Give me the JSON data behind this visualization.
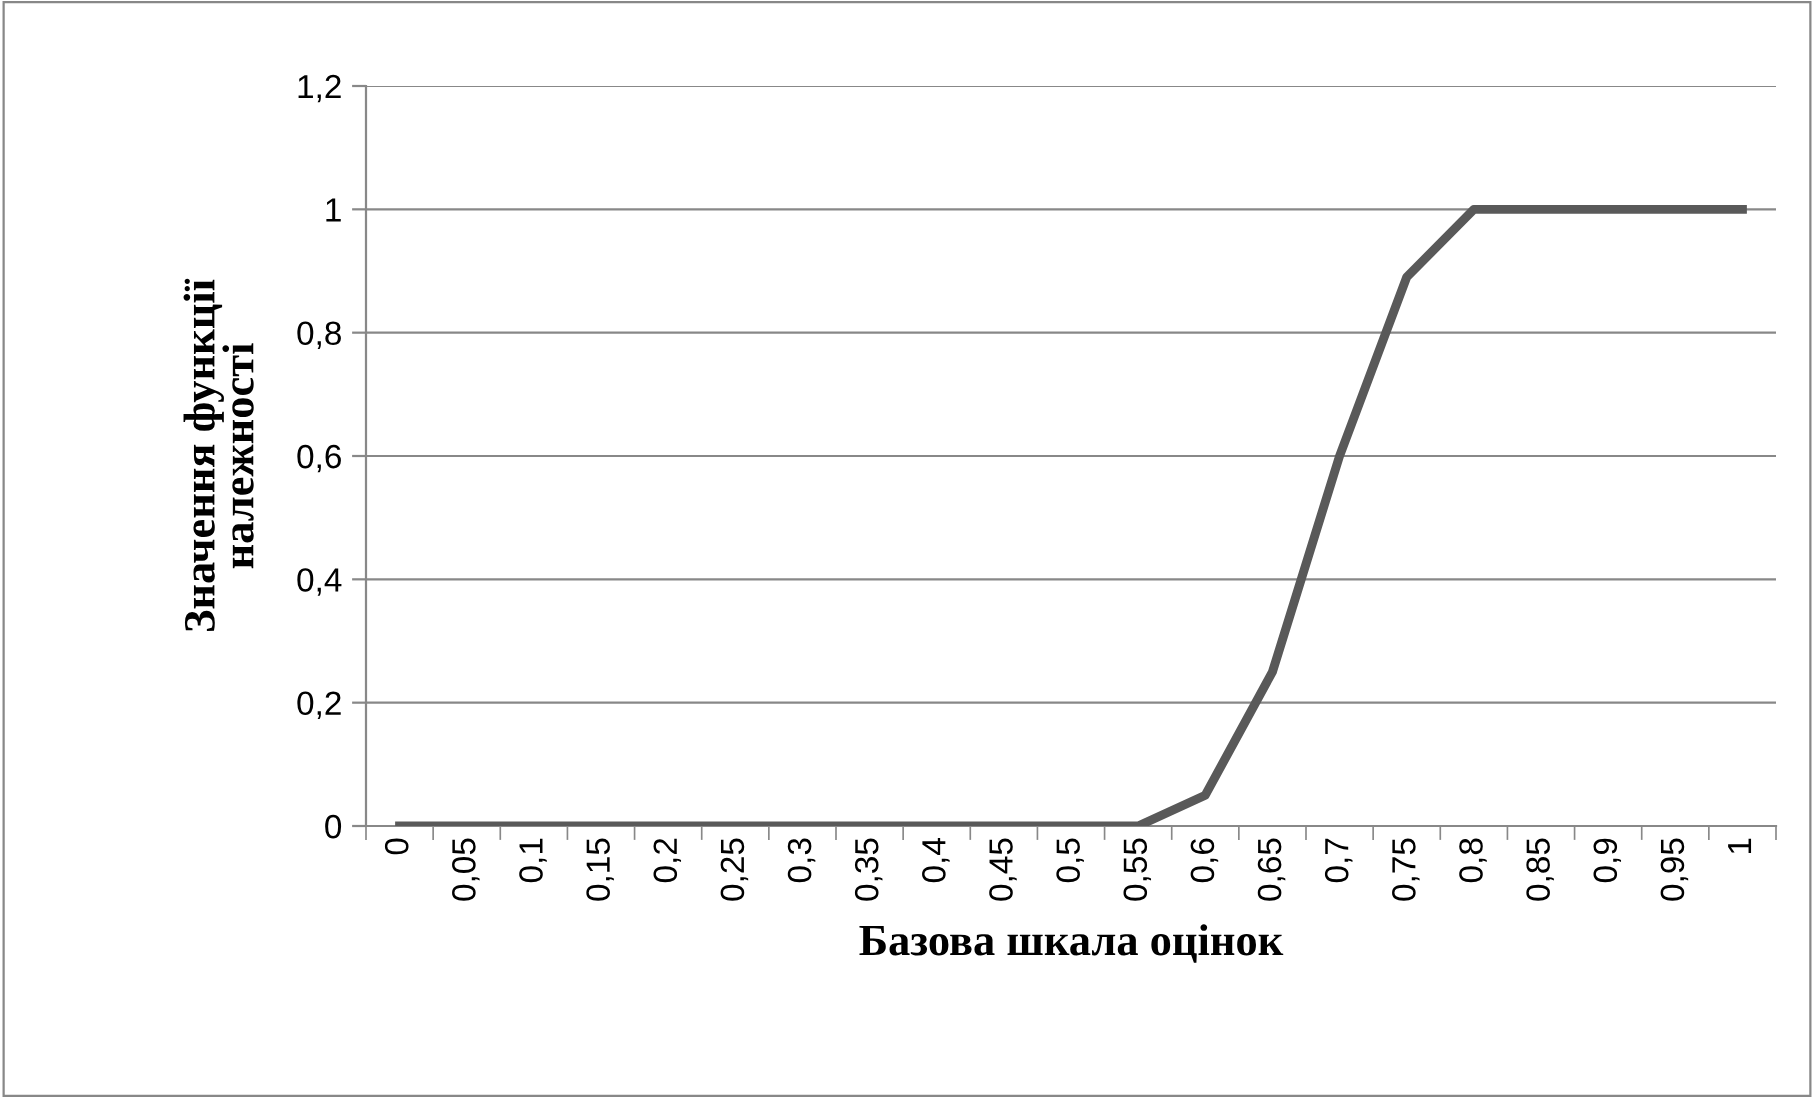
{
  "chart_data": {
    "type": "line",
    "xlabel": "Базова шкала оцінок",
    "ylabel": "Значення функції\nналежності",
    "categories": [
      "0",
      "0,05",
      "0,1",
      "0,15",
      "0,2",
      "0,25",
      "0,3",
      "0,35",
      "0,4",
      "0,45",
      "0,5",
      "0,55",
      "0,6",
      "0,65",
      "0,7",
      "0,75",
      "0,8",
      "0,85",
      "0,9",
      "0,95",
      "1"
    ],
    "series": [
      {
        "color": "#595959",
        "values": [
          0,
          0,
          0,
          0,
          0,
          0,
          0,
          0,
          0,
          0,
          0,
          0,
          0.05,
          0.25,
          0.6,
          0.89,
          1,
          1,
          1,
          1,
          1
        ]
      }
    ],
    "ylim": [
      0,
      1.2
    ],
    "yticks": [
      {
        "value": 0,
        "label": "0"
      },
      {
        "value": 0.2,
        "label": "0,2"
      },
      {
        "value": 0.4,
        "label": "0,4"
      },
      {
        "value": 0.6,
        "label": "0,6"
      },
      {
        "value": 0.8,
        "label": "0,8"
      },
      {
        "value": 1,
        "label": "1"
      },
      {
        "value": 1.2,
        "label": "1,2"
      }
    ],
    "grid": "y",
    "legend": false,
    "marker": "none",
    "line_style": "solid"
  }
}
